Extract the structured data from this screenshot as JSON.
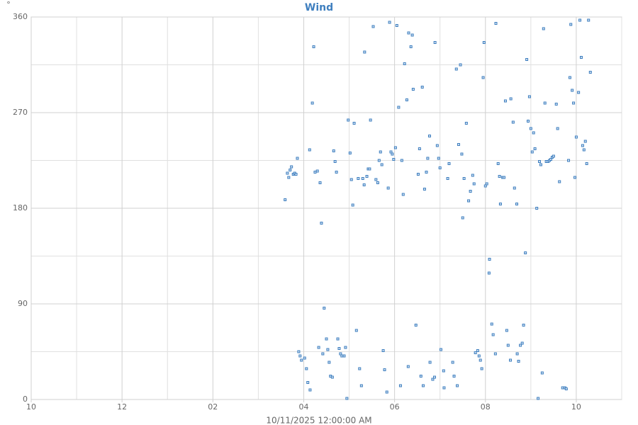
{
  "chart_data": {
    "type": "scatter",
    "title": "Wind",
    "y_label": "°",
    "x_label": "10/11/2025 12:00:00 AM",
    "color": "#3f7fbf",
    "grid": true,
    "xlim": [
      10,
      23
    ],
    "xticks": [
      {
        "value": 10,
        "label": "10"
      },
      {
        "value": 12,
        "label": "12"
      },
      {
        "value": 14,
        "label": "02"
      },
      {
        "value": 16,
        "label": "04"
      },
      {
        "value": 18,
        "label": "06"
      },
      {
        "value": 20,
        "label": "08"
      },
      {
        "value": 22,
        "label": "10"
      }
    ],
    "x_minor_ticks": [
      11,
      13,
      15,
      17,
      19,
      21,
      23
    ],
    "ylim": [
      0,
      360
    ],
    "yticks": [
      0,
      90,
      180,
      270,
      360
    ],
    "y_minor_ticks": [
      45,
      135,
      225,
      315
    ],
    "x": [
      15.59,
      15.64,
      15.67,
      15.7,
      15.73,
      15.77,
      15.8,
      15.83,
      15.86,
      15.89,
      15.92,
      15.95,
      16.02,
      16.06,
      16.09,
      16.14,
      16.13,
      16.19,
      16.22,
      16.25,
      16.3,
      16.33,
      16.36,
      16.39,
      16.42,
      16.45,
      16.5,
      16.53,
      16.56,
      16.59,
      16.63,
      16.66,
      16.69,
      16.72,
      16.75,
      16.78,
      16.81,
      16.84,
      16.89,
      16.92,
      16.95,
      16.98,
      17.02,
      17.05,
      17.08,
      17.11,
      17.16,
      17.2,
      17.23,
      17.27,
      17.3,
      17.33,
      17.34,
      17.39,
      17.42,
      17.45,
      17.47,
      17.53,
      17.59,
      17.63,
      17.66,
      17.69,
      17.72,
      17.75,
      17.78,
      17.83,
      17.86,
      17.89,
      17.92,
      17.95,
      17.98,
      18.02,
      18.05,
      18.09,
      18.13,
      18.16,
      18.19,
      18.22,
      18.27,
      18.3,
      18.31,
      18.36,
      18.39,
      18.41,
      18.47,
      18.52,
      18.55,
      18.58,
      18.61,
      18.63,
      18.66,
      18.7,
      18.73,
      18.77,
      18.78,
      18.84,
      18.88,
      18.89,
      18.94,
      18.97,
      19.0,
      19.02,
      19.08,
      19.09,
      19.17,
      19.2,
      19.28,
      19.31,
      19.36,
      19.38,
      19.41,
      19.45,
      19.48,
      19.5,
      19.53,
      19.58,
      19.63,
      19.67,
      19.72,
      19.75,
      19.78,
      19.83,
      19.86,
      19.89,
      19.92,
      19.95,
      19.97,
      20.0,
      20.03,
      20.08,
      20.09,
      20.14,
      20.17,
      20.22,
      20.23,
      20.28,
      20.31,
      20.33,
      20.38,
      20.41,
      20.44,
      20.47,
      20.5,
      20.55,
      20.56,
      20.61,
      20.64,
      20.69,
      20.7,
      20.73,
      20.77,
      20.81,
      20.84,
      20.88,
      20.91,
      20.94,
      20.97,
      21.0,
      21.03,
      21.06,
      21.09,
      21.13,
      21.16,
      21.19,
      21.22,
      21.25,
      21.28,
      21.31,
      21.34,
      21.38,
      21.41,
      21.44,
      21.47,
      21.5,
      21.56,
      21.59,
      21.63,
      21.7,
      21.75,
      21.78,
      21.83,
      21.86,
      21.88,
      21.91,
      21.94,
      21.97,
      22.0,
      22.05,
      22.08,
      22.11,
      22.14,
      22.17,
      22.2,
      22.23,
      22.27,
      22.31
    ],
    "values": [
      188,
      213,
      209,
      216,
      219,
      212,
      213,
      212,
      227,
      45,
      41,
      37,
      39,
      29,
      16,
      9,
      235,
      279,
      332,
      214,
      215,
      49,
      204,
      166,
      43,
      86,
      57,
      47,
      35,
      22,
      21,
      234,
      224,
      214,
      57,
      48,
      43,
      41,
      41,
      49,
      1,
      263,
      232,
      207,
      183,
      260,
      65,
      208,
      29,
      13,
      208,
      202,
      327,
      210,
      217,
      217,
      263,
      351,
      207,
      204,
      225,
      233,
      221,
      46,
      28,
      7,
      199,
      355,
      233,
      231,
      226,
      237,
      352,
      275,
      13,
      225,
      193,
      316,
      282,
      31,
      345,
      332,
      343,
      292,
      70,
      212,
      236,
      22,
      294,
      13,
      198,
      214,
      227,
      248,
      35,
      19,
      21,
      336,
      239,
      227,
      218,
      47,
      27,
      11,
      208,
      222,
      35,
      22,
      311,
      13,
      240,
      315,
      231,
      171,
      208,
      260,
      187,
      196,
      211,
      203,
      44,
      46,
      41,
      37,
      29,
      303,
      336,
      201,
      203,
      119,
      132,
      71,
      61,
      43,
      354,
      222,
      210,
      184,
      209,
      209,
      281,
      65,
      51,
      37,
      283,
      261,
      199,
      184,
      43,
      36,
      51,
      53,
      70,
      138,
      320,
      262,
      285,
      255,
      233,
      251,
      236,
      180,
      1,
      224,
      221,
      25,
      349,
      279,
      224,
      224,
      225,
      226,
      228,
      229,
      278,
      255,
      205,
      11,
      11,
      10,
      225,
      303,
      353,
      291,
      279,
      209,
      247,
      289,
      357,
      322,
      239,
      235,
      243,
      222,
      357,
      308
    ]
  }
}
